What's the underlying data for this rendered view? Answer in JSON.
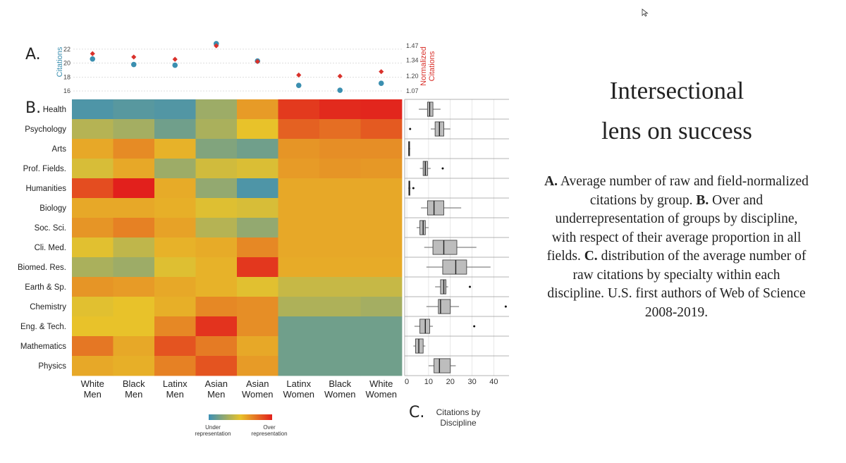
{
  "slide": {
    "title_line1": "Intersectional",
    "title_line2": "lens on success",
    "desc": [
      {
        "b": "A.",
        "t": " Average number of raw and field-normalized citations by group. "
      },
      {
        "b": "B.",
        "t": " Over and underrepresentation of groups by discipline, with respect of their average proportion in all fields. "
      },
      {
        "b": "C.",
        "t": " distribution of the average number of raw citations by specialty within each discipline. U.S. first authors of Web of Science 2008-2019."
      }
    ]
  },
  "panels": {
    "a": "A.",
    "b": "B.",
    "c": "C."
  },
  "chart_data": [
    {
      "type": "scatter",
      "panel": "A",
      "categories": [
        "White Men",
        "Black Men",
        "Latinx Men",
        "Asian Men",
        "Asian Women",
        "Latinx Women",
        "Black Women",
        "White Women"
      ],
      "ylabel": "Citations",
      "ylabel_right": "Normalized Citations",
      "yticks": [
        "16",
        "18",
        "20",
        "22"
      ],
      "yticks_right": [
        "1.07",
        "1.20",
        "1.34",
        "1.47"
      ],
      "ylim": [
        15.7,
        23.3
      ],
      "ylim_right": [
        1.05,
        1.52
      ],
      "series": [
        {
          "name": "Citations",
          "marker": "circle",
          "color": "#3b8fb0",
          "values": [
            20.6,
            19.8,
            19.7,
            22.8,
            20.3,
            16.8,
            16.1,
            17.1
          ]
        },
        {
          "name": "Normalized Citations",
          "marker": "diamond",
          "color": "#d9312b",
          "values": [
            1.4,
            1.37,
            1.35,
            1.47,
            1.33,
            1.21,
            1.2,
            1.24
          ]
        }
      ]
    },
    {
      "type": "heatmap",
      "panel": "B",
      "rows": [
        "Health",
        "Psychology",
        "Arts",
        "Prof. Fields.",
        "Humanities",
        "Biology",
        "Soc. Sci.",
        "Cli. Med.",
        "Biomed. Res.",
        "Earth & Sp.",
        "Chemistry",
        "Eng. & Tech.",
        "Mathematics",
        "Physics"
      ],
      "columns": [
        [
          "White",
          "Men"
        ],
        [
          "Black",
          "Men"
        ],
        [
          "Latinx",
          "Men"
        ],
        [
          "Asian",
          "Men"
        ],
        [
          "Asian",
          "Women"
        ],
        [
          "Latinx",
          "Women"
        ],
        [
          "Black",
          "Women"
        ],
        [
          "White",
          "Women"
        ]
      ],
      "scale_note": "0 = strongest under representation, 1 = strongest over representation",
      "values": [
        [
          0.05,
          0.08,
          0.06,
          0.28,
          0.62,
          0.92,
          0.97,
          0.98
        ],
        [
          0.35,
          0.3,
          0.15,
          0.32,
          0.5,
          0.8,
          0.76,
          0.82
        ],
        [
          0.58,
          0.67,
          0.55,
          0.2,
          0.15,
          0.64,
          0.66,
          0.66
        ],
        [
          0.45,
          0.58,
          0.28,
          0.43,
          0.46,
          0.62,
          0.64,
          0.63
        ],
        [
          0.86,
          1.0,
          0.57,
          0.25,
          0.05,
          0.58,
          0.58,
          0.58
        ],
        [
          0.58,
          0.58,
          0.56,
          0.47,
          0.45,
          0.58,
          0.58,
          0.58
        ],
        [
          0.64,
          0.7,
          0.6,
          0.35,
          0.25,
          0.58,
          0.58,
          0.58
        ],
        [
          0.48,
          0.38,
          0.55,
          0.57,
          0.68,
          0.58,
          0.58,
          0.58
        ],
        [
          0.32,
          0.28,
          0.47,
          0.55,
          0.93,
          0.57,
          0.57,
          0.57
        ],
        [
          0.64,
          0.62,
          0.58,
          0.55,
          0.48,
          0.4,
          0.4,
          0.4
        ],
        [
          0.48,
          0.5,
          0.56,
          0.68,
          0.66,
          0.33,
          0.33,
          0.3
        ],
        [
          0.5,
          0.5,
          0.68,
          0.94,
          0.66,
          0.15,
          0.15,
          0.15
        ],
        [
          0.73,
          0.58,
          0.84,
          0.72,
          0.58,
          0.15,
          0.15,
          0.15
        ],
        [
          0.58,
          0.56,
          0.7,
          0.84,
          0.62,
          0.15,
          0.15,
          0.15
        ]
      ],
      "legend": {
        "low": "Under representation",
        "high": "Over representation",
        "colors": [
          "#3d90b5",
          "#e8c22a",
          "#e2201c"
        ]
      }
    },
    {
      "type": "box",
      "panel": "C",
      "xlabel": "Citations by Discipline",
      "xticks": [
        "0",
        "10",
        "20",
        "30",
        "40"
      ],
      "xlim": [
        -1,
        47
      ],
      "boxes": [
        {
          "row": "Health",
          "min": 5.5,
          "q1": 9.5,
          "median": 10.5,
          "q3": 12,
          "max": 15.5,
          "outliers": []
        },
        {
          "row": "Psychology",
          "min": 11,
          "q1": 13,
          "median": 15,
          "q3": 17,
          "max": 20,
          "outliers": [
            1.5
          ]
        },
        {
          "row": "Arts",
          "min": 0.6,
          "q1": 0.8,
          "median": 1,
          "q3": 1.3,
          "max": 1.6,
          "outliers": []
        },
        {
          "row": "Prof. Fields.",
          "min": 6,
          "q1": 7.5,
          "median": 8.5,
          "q3": 9.5,
          "max": 11,
          "outliers": [
            16.5
          ]
        },
        {
          "row": "Humanities",
          "min": 0.6,
          "q1": 0.9,
          "median": 1.1,
          "q3": 1.4,
          "max": 1.8,
          "outliers": [
            3
          ]
        },
        {
          "row": "Biology",
          "min": 6.5,
          "q1": 9.5,
          "median": 12.5,
          "q3": 17,
          "max": 25,
          "outliers": []
        },
        {
          "row": "Soc. Sci.",
          "min": 4.5,
          "q1": 6,
          "median": 7.5,
          "q3": 8.5,
          "max": 10,
          "outliers": []
        },
        {
          "row": "Cli. Med.",
          "min": 8,
          "q1": 12,
          "median": 17,
          "q3": 23,
          "max": 32,
          "outliers": []
        },
        {
          "row": "Biomed. Res.",
          "min": 9,
          "q1": 16.5,
          "median": 22.5,
          "q3": 27.5,
          "max": 38.5,
          "outliers": []
        },
        {
          "row": "Earth & Sp.",
          "min": 13,
          "q1": 15.5,
          "median": 17,
          "q3": 18,
          "max": 19,
          "outliers": [
            29
          ]
        },
        {
          "row": "Chemistry",
          "min": 9,
          "q1": 14.5,
          "median": 15.5,
          "q3": 20,
          "max": 24,
          "outliers": [
            45.5
          ]
        },
        {
          "row": "Eng. & Tech.",
          "min": 3.5,
          "q1": 6,
          "median": 8.5,
          "q3": 10.5,
          "max": 12,
          "outliers": [
            31
          ]
        },
        {
          "row": "Mathematics",
          "min": 3,
          "q1": 4,
          "median": 5.5,
          "q3": 7.5,
          "max": 8.5,
          "outliers": []
        },
        {
          "row": "Physics",
          "min": 10,
          "q1": 12.5,
          "median": 15,
          "q3": 20,
          "max": 22.5,
          "outliers": []
        }
      ]
    }
  ]
}
